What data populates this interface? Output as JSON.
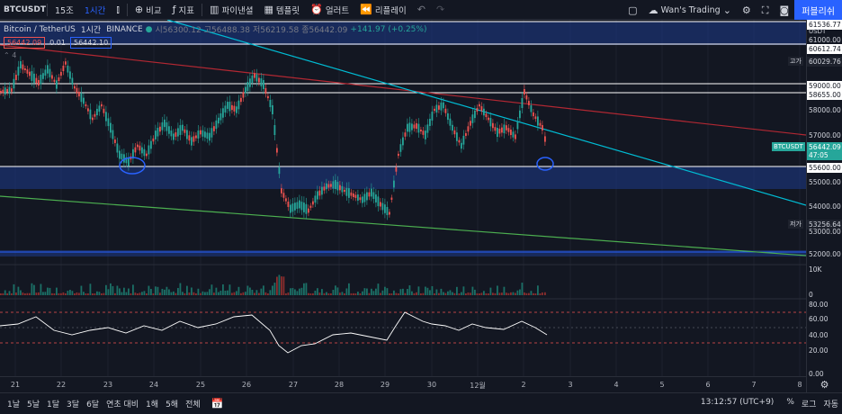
{
  "toolbar": {
    "symbol": "BTCUSDT",
    "interval_15m": "15조",
    "interval_1h": "1시간",
    "compare": "비교",
    "indicators": "지표",
    "financials": "파이낸셜",
    "templates": "템플릿",
    "alert": "얼러트",
    "replay": "리플레이",
    "layout_name": "Wan's Trading",
    "publish": "퍼블리쉬"
  },
  "legend": {
    "title": "Bitcoin / TetherUS",
    "interval": "1시간",
    "exchange": "BINANCE",
    "open": "시56300.12",
    "high": "고56488.38",
    "low": "저56219.58",
    "close": "종56442.09",
    "change": "+141.97 (+0.25%)",
    "sell_price": "56442.09",
    "spread": "0.01",
    "buy_price": "56442.10",
    "indicator_count": "4"
  },
  "price_axis": {
    "currency": "USDT",
    "levels": [
      {
        "label": "61536.77",
        "style": "box-white"
      },
      {
        "label": "61000.00",
        "style": "plain"
      },
      {
        "label": "60612.74",
        "style": "box-white"
      },
      {
        "label": "60029.76",
        "style": "box-dark",
        "prefix": "고가"
      },
      {
        "label": "59000.00",
        "style": "box-white"
      },
      {
        "label": "58655.00",
        "style": "box-white"
      },
      {
        "label": "58000.00",
        "style": "plain"
      },
      {
        "label": "57000.00",
        "style": "plain"
      },
      {
        "label": "56442.09",
        "style": "box-teal",
        "prefix": "BTCUSDT",
        "sub": "47:05"
      },
      {
        "label": "55600.00",
        "style": "box-white"
      },
      {
        "label": "55000.00",
        "style": "plain"
      },
      {
        "label": "54000.00",
        "style": "plain"
      },
      {
        "label": "53256.64",
        "style": "box-dark",
        "prefix": "저가"
      },
      {
        "label": "53000.00",
        "style": "plain"
      },
      {
        "label": "52000.00",
        "style": "box-red"
      }
    ],
    "volume_labels": [
      "10K",
      "0"
    ],
    "rsi_labels": [
      "80.00",
      "60.00",
      "40.00",
      "20.00",
      "0.00"
    ]
  },
  "time_axis": {
    "labels": [
      "21",
      "22",
      "23",
      "24",
      "25",
      "26",
      "27",
      "28",
      "29",
      "30",
      "12월",
      "2",
      "3",
      "4",
      "5",
      "6",
      "7",
      "8"
    ]
  },
  "bottombar": {
    "ranges": [
      "1날",
      "5날",
      "1달",
      "3달",
      "6달",
      "연초 대비",
      "1해",
      "5해",
      "전체"
    ],
    "clock": "13:12:57 (UTC+9)",
    "percent": "%",
    "log": "로그",
    "auto": "자동"
  },
  "colors": {
    "background": "#131722",
    "up": "#26a69a",
    "down": "#ef5350",
    "accent": "#2962ff",
    "trend_red": "#b22833",
    "trend_cyan": "#00bcd4",
    "trend_green": "#4caf50",
    "zone": "#1e3a8a"
  },
  "chart_data": {
    "type": "candlestick",
    "series": [
      {
        "name": "Bitcoin / TetherUS",
        "values": []
      }
    ],
    "ylim": [
      52000,
      61536.77
    ]
  }
}
